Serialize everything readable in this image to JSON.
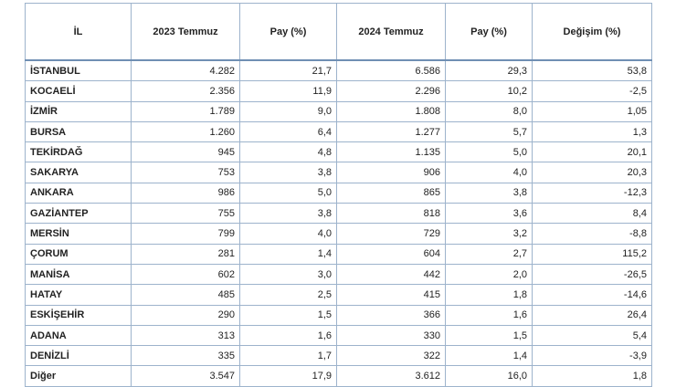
{
  "table": {
    "header": [
      "İL",
      "2023 Temmuz",
      "Pay (%)",
      "2024 Temmuz",
      "Pay (%)",
      "Değişim (%)"
    ],
    "rows": [
      [
        "İSTANBUL",
        "4.282",
        "21,7",
        "6.586",
        "29,3",
        "53,8"
      ],
      [
        "KOCAELİ",
        "2.356",
        "11,9",
        "2.296",
        "10,2",
        "-2,5"
      ],
      [
        "İZMİR",
        "1.789",
        "9,0",
        "1.808",
        "8,0",
        "1,05"
      ],
      [
        "BURSA",
        "1.260",
        "6,4",
        "1.277",
        "5,7",
        "1,3"
      ],
      [
        "TEKİRDAĞ",
        "945",
        "4,8",
        "1.135",
        "5,0",
        "20,1"
      ],
      [
        "SAKARYA",
        "753",
        "3,8",
        "906",
        "4,0",
        "20,3"
      ],
      [
        "ANKARA",
        "986",
        "5,0",
        "865",
        "3,8",
        "-12,3"
      ],
      [
        "GAZİANTEP",
        "755",
        "3,8",
        "818",
        "3,6",
        "8,4"
      ],
      [
        "MERSİN",
        "799",
        "4,0",
        "729",
        "3,2",
        "-8,8"
      ],
      [
        "ÇORUM",
        "281",
        "1,4",
        "604",
        "2,7",
        "115,2"
      ],
      [
        "MANİSA",
        "602",
        "3,0",
        "442",
        "2,0",
        "-26,5"
      ],
      [
        "HATAY",
        "485",
        "2,5",
        "415",
        "1,8",
        "-14,6"
      ],
      [
        "ESKİŞEHİR",
        "290",
        "1,5",
        "366",
        "1,6",
        "26,4"
      ],
      [
        "ADANA",
        "313",
        "1,6",
        "330",
        "1,5",
        "5,4"
      ],
      [
        "DENİZLİ",
        "335",
        "1,7",
        "322",
        "1,4",
        "-3,9"
      ],
      [
        "Diğer",
        "3.547",
        "17,9",
        "3.612",
        "16,0",
        "1,8"
      ]
    ]
  }
}
